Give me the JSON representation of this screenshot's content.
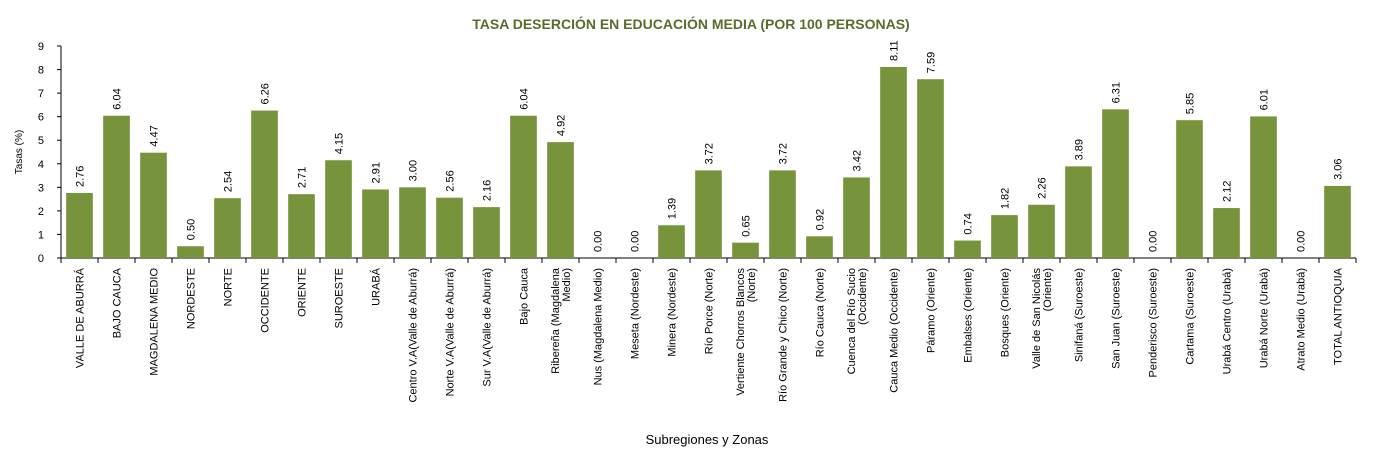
{
  "chart_data": {
    "type": "bar",
    "title": "TASA DESERCIÓN EN EDUCACIÓN MEDIA (POR 100 PERSONAS)",
    "xlabel": "Subregiones y Zonas",
    "ylabel": "Tasas (%)",
    "ylim": [
      0,
      9
    ],
    "yticks": [
      0,
      1,
      2,
      3,
      4,
      5,
      6,
      7,
      8,
      9
    ],
    "grid": false,
    "bar_color": "#77933c",
    "categories": [
      "VALLE DE ABURRÁ",
      "BAJO CAUCA",
      "MAGDALENA MEDIO",
      "NORDESTE",
      "NORTE",
      "OCCIDENTE",
      "ORIENTE",
      "SUROESTE",
      "URABÁ",
      "Centro V.A(Valle de Aburrá)",
      "Norte V.A(Valle de Aburrá)",
      "Sur V.A(Valle de Aburrá)",
      "Bajo Cauca",
      "Ribereña (Magdalena Medio)",
      "Nus (Magdalena Medio)",
      "Meseta (Nordeste)",
      "Minera (Nordeste)",
      "Río Porce (Norte)",
      "Vertiente Chorros Blancos (Norte)",
      "Río Grande y Chico (Norte)",
      "Río Cauca (Norte)",
      "Cuenca del Río Sucio (Occidente)",
      "Cauca Medio (Occidente)",
      "Páramo (Oriente)",
      "Embalses (Oriente)",
      "Bosques (Oriente)",
      "Valle de San Nicolás (Oriente)",
      "Sinifaná (Suroeste)",
      "San Juan (Suroeste)",
      "Penderisco (Suroeste)",
      "Cartama (Suroeste)",
      "Urabá Centro (Urabá)",
      "Urabá Norte (Urabá)",
      "Atrato Medio (Urabá)",
      "TOTAL ANTIOQUIA"
    ],
    "labels": [
      [
        "VALLE DE ABURRÁ"
      ],
      [
        "BAJO CAUCA"
      ],
      [
        "MAGDALENA MEDIO"
      ],
      [
        "NORDESTE"
      ],
      [
        "NORTE"
      ],
      [
        "OCCIDENTE"
      ],
      [
        "ORIENTE"
      ],
      [
        "SUROESTE"
      ],
      [
        "URABÁ"
      ],
      [
        "Centro V.A(Valle de Aburrá)"
      ],
      [
        "Norte V.A(Valle de Aburrá)"
      ],
      [
        "Sur V.A(Valle de Aburrá)"
      ],
      [
        "Bajo Cauca"
      ],
      [
        "Ribereña  (Magdalena",
        "Medio)"
      ],
      [
        "Nus  (Magdalena Medio)"
      ],
      [
        "Meseta  (Nordeste)"
      ],
      [
        "Minera  (Nordeste)"
      ],
      [
        "Río Porce   (Norte)"
      ],
      [
        "Vertiente Chorros Blancos",
        "(Norte)"
      ],
      [
        "Río Grande y Chico  (Norte)"
      ],
      [
        "Río Cauca  (Norte)"
      ],
      [
        "Cuenca del Río Sucio",
        "(Occidente)"
      ],
      [
        "Cauca Medio  (Occidente)"
      ],
      [
        "Páramo  (Oriente)"
      ],
      [
        "Embalses  (Oriente)"
      ],
      [
        "Bosques  (Oriente)"
      ],
      [
        "Valle de San Nicolás",
        "(Oriente)"
      ],
      [
        "Sinifaná  (Suroeste)"
      ],
      [
        "San Juan  (Suroeste)"
      ],
      [
        "Penderisco  (Suroeste)"
      ],
      [
        "Cartama  (Suroeste)"
      ],
      [
        "Urabá Centro  (Urabá)"
      ],
      [
        "Urabá Norte  (Urabá)"
      ],
      [
        "Atrato Medio  (Urabá)"
      ],
      [
        "TOTAL ANTIOQUIA"
      ]
    ],
    "values": [
      2.76,
      6.04,
      4.47,
      0.5,
      2.54,
      6.26,
      2.71,
      4.15,
      2.91,
      3.0,
      2.56,
      2.16,
      6.04,
      4.92,
      0.0,
      0.0,
      1.39,
      3.72,
      0.65,
      3.72,
      0.92,
      3.42,
      8.11,
      7.59,
      0.74,
      1.82,
      2.26,
      3.89,
      6.31,
      0.0,
      5.85,
      2.12,
      6.01,
      0.0,
      3.06
    ],
    "value_labels": [
      "2.76",
      "6.04",
      "4.47",
      "0.50",
      "2.54",
      "6.26",
      "2.71",
      "4.15",
      "2.91",
      "3.00",
      "2.56",
      "2.16",
      "6.04",
      "4.92",
      "0.00",
      "0.00",
      "1.39",
      "3.72",
      "0.65",
      "3.72",
      "0.92",
      "3.42",
      "8.11",
      "7.59",
      "0.74",
      "1.82",
      "2.26",
      "3.89",
      "6.31",
      "0.00",
      "5.85",
      "2.12",
      "6.01",
      "0.00",
      "3.06"
    ]
  }
}
